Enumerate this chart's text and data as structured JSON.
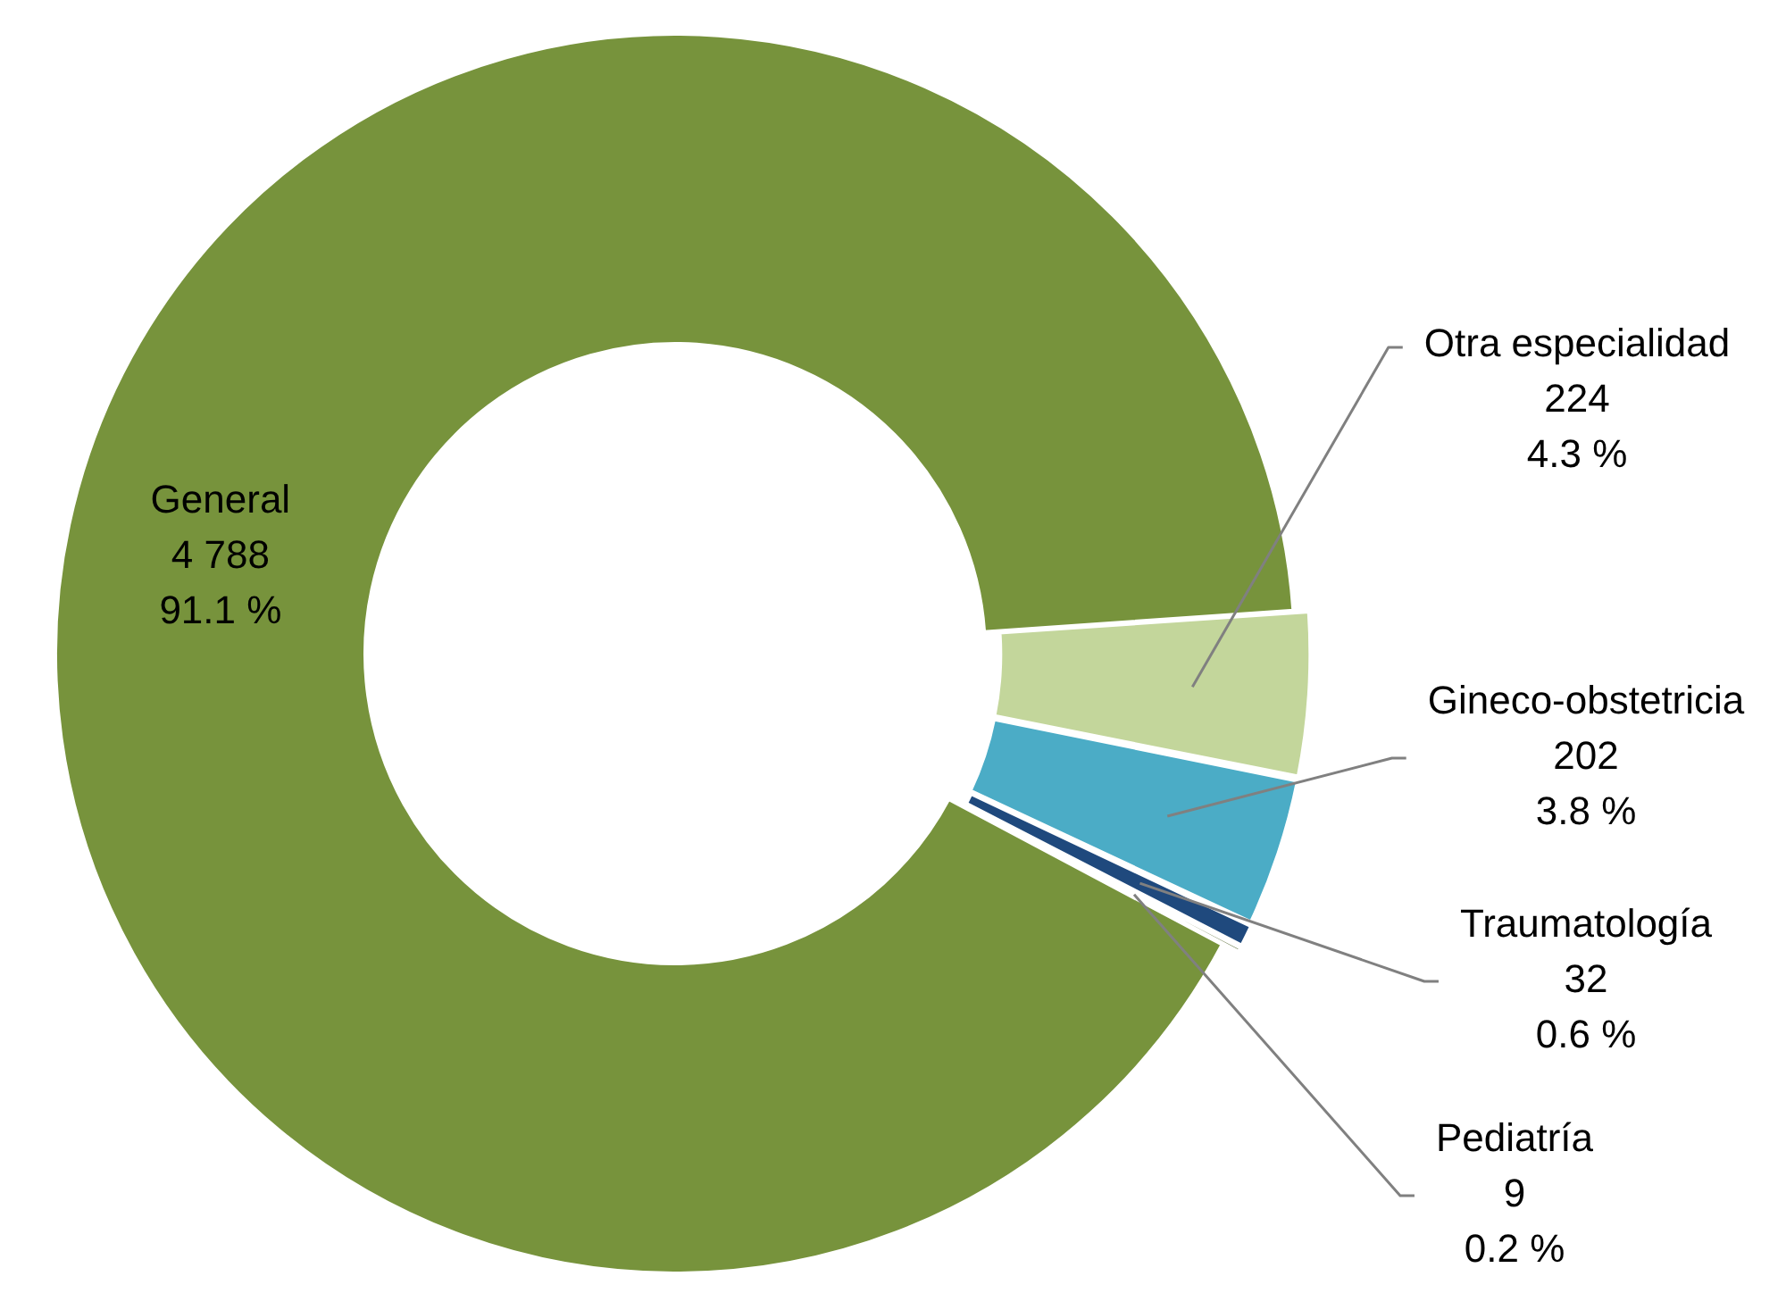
{
  "chart_data": {
    "type": "donut",
    "categories": [
      "General",
      "Otra especialidad",
      "Gineco-obstetricia",
      "Traumatología",
      "Pediatría"
    ],
    "values": [
      4788,
      224,
      202,
      32,
      9
    ],
    "colors": [
      "#77933c",
      "#c3d69b",
      "#4bacc6",
      "#1f497d",
      "#4f6228"
    ],
    "value_labels": [
      "4 788\n91.1 %",
      "224\n4.3 %",
      "202\n3.8 %",
      "32\n0.6 %",
      "9\n0.2 %"
    ],
    "legend": false
  }
}
